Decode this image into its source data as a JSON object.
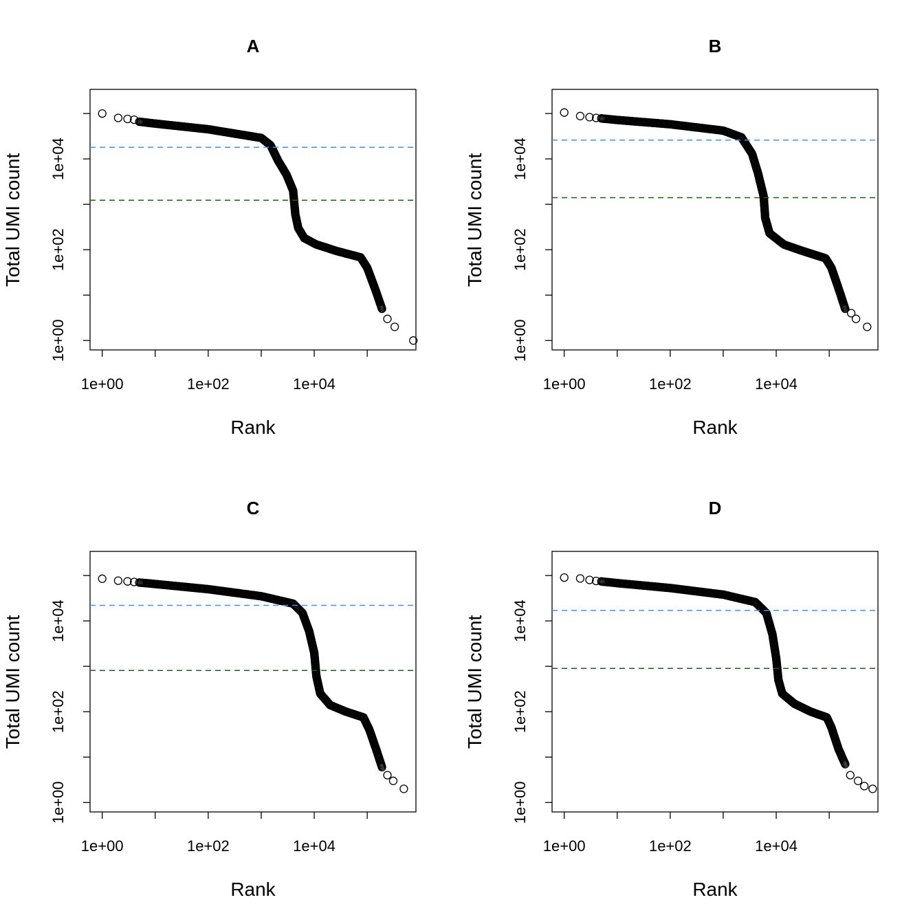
{
  "chart_data": [
    {
      "type": "scatter",
      "title": "A",
      "xlabel": "Rank",
      "ylabel": "Total UMI count",
      "x_scale": "log",
      "y_scale": "log",
      "xlim": [
        0.59,
        830000
      ],
      "ylim": [
        0.62,
        340000
      ],
      "x_tick_labels": [
        "1e+00",
        "1e+02",
        "1e+04"
      ],
      "y_tick_labels": [
        "1e+00",
        "1e+02",
        "1e+04"
      ],
      "grid": false,
      "hlines": [
        {
          "value": 18000,
          "color": "#3f8fff",
          "style": "dashed"
        },
        {
          "value": 1230,
          "color": "#1a5e1a",
          "style": "dashed"
        }
      ],
      "points": [
        [
          1,
          100000
        ],
        [
          2,
          80000
        ],
        [
          3,
          76000
        ],
        [
          4,
          73000
        ],
        [
          5,
          66000
        ],
        [
          10,
          60000
        ],
        [
          100,
          45000
        ],
        [
          1000,
          29000
        ],
        [
          1500,
          20000
        ],
        [
          2100,
          9000
        ],
        [
          3000,
          4500
        ],
        [
          4000,
          2000
        ],
        [
          4400,
          600
        ],
        [
          5000,
          300
        ],
        [
          6500,
          180
        ],
        [
          11000,
          130
        ],
        [
          27000,
          93
        ],
        [
          75000,
          68
        ],
        [
          100000,
          40
        ],
        [
          140000,
          14
        ],
        [
          190000,
          5
        ],
        [
          240000,
          3
        ],
        [
          330000,
          2
        ],
        [
          740000,
          1
        ]
      ]
    },
    {
      "type": "scatter",
      "title": "B",
      "xlabel": "Rank",
      "ylabel": "Total UMI count",
      "x_scale": "log",
      "y_scale": "log",
      "xlim": [
        0.59,
        830000
      ],
      "ylim": [
        0.62,
        340000
      ],
      "x_tick_labels": [
        "1e+00",
        "1e+02",
        "1e+04"
      ],
      "y_tick_labels": [
        "1e+00",
        "1e+02",
        "1e+04"
      ],
      "grid": false,
      "hlines": [
        {
          "value": 26000,
          "color": "#3f8fff",
          "style": "dashed"
        },
        {
          "value": 1400,
          "color": "#1a5e1a",
          "style": "dashed"
        }
      ],
      "points": [
        [
          1,
          105000
        ],
        [
          2,
          88000
        ],
        [
          3,
          83000
        ],
        [
          4,
          80000
        ],
        [
          5,
          78000
        ],
        [
          10,
          72000
        ],
        [
          100,
          58000
        ],
        [
          1000,
          42000
        ],
        [
          2200,
          30000
        ],
        [
          3500,
          13000
        ],
        [
          4500,
          5000
        ],
        [
          5800,
          1500
        ],
        [
          6200,
          500
        ],
        [
          7500,
          230
        ],
        [
          14000,
          130
        ],
        [
          35000,
          90
        ],
        [
          85000,
          65
        ],
        [
          110000,
          40
        ],
        [
          150000,
          14
        ],
        [
          200000,
          5
        ],
        [
          260000,
          4
        ],
        [
          320000,
          3
        ],
        [
          520000,
          2
        ]
      ]
    },
    {
      "type": "scatter",
      "title": "C",
      "xlabel": "Rank",
      "ylabel": "Total UMI count",
      "x_scale": "log",
      "y_scale": "log",
      "xlim": [
        0.59,
        830000
      ],
      "ylim": [
        0.62,
        340000
      ],
      "x_tick_labels": [
        "1e+00",
        "1e+02",
        "1e+04"
      ],
      "y_tick_labels": [
        "1e+00",
        "1e+02",
        "1e+04"
      ],
      "grid": false,
      "hlines": [
        {
          "value": 22000,
          "color": "#3f8fff",
          "style": "dashed"
        },
        {
          "value": 810,
          "color": "#1a5e1a",
          "style": "dashed"
        }
      ],
      "points": [
        [
          1,
          85000
        ],
        [
          2,
          77000
        ],
        [
          3,
          74000
        ],
        [
          4,
          72000
        ],
        [
          5,
          70000
        ],
        [
          10,
          65000
        ],
        [
          100,
          50000
        ],
        [
          1000,
          35000
        ],
        [
          4000,
          24000
        ],
        [
          6000,
          15000
        ],
        [
          8000,
          6000
        ],
        [
          10000,
          2000
        ],
        [
          11000,
          600
        ],
        [
          13000,
          250
        ],
        [
          20000,
          140
        ],
        [
          40000,
          100
        ],
        [
          85000,
          75
        ],
        [
          110000,
          40
        ],
        [
          150000,
          14
        ],
        [
          190000,
          6
        ],
        [
          240000,
          4
        ],
        [
          310000,
          3
        ],
        [
          490000,
          2
        ]
      ]
    },
    {
      "type": "scatter",
      "title": "D",
      "xlabel": "Rank",
      "ylabel": "Total UMI count",
      "x_scale": "log",
      "y_scale": "log",
      "xlim": [
        0.59,
        830000
      ],
      "ylim": [
        0.62,
        340000
      ],
      "x_tick_labels": [
        "1e+00",
        "1e+02",
        "1e+04"
      ],
      "y_tick_labels": [
        "1e+00",
        "1e+02",
        "1e+04"
      ],
      "grid": false,
      "hlines": [
        {
          "value": 17000,
          "color": "#3f8fff",
          "style": "dashed"
        },
        {
          "value": 900,
          "color": "#1a5e1a",
          "style": "dashed"
        }
      ],
      "points": [
        [
          1,
          90000
        ],
        [
          2,
          86000
        ],
        [
          3,
          80000
        ],
        [
          4,
          76000
        ],
        [
          5,
          74000
        ],
        [
          10,
          68000
        ],
        [
          100,
          53000
        ],
        [
          1000,
          38000
        ],
        [
          4000,
          26000
        ],
        [
          6500,
          15000
        ],
        [
          8500,
          5000
        ],
        [
          10000,
          1500
        ],
        [
          11000,
          500
        ],
        [
          13000,
          250
        ],
        [
          22000,
          150
        ],
        [
          45000,
          100
        ],
        [
          90000,
          75
        ],
        [
          110000,
          45
        ],
        [
          150000,
          15
        ],
        [
          200000,
          7
        ],
        [
          250000,
          4
        ],
        [
          350000,
          3
        ],
        [
          460000,
          2.3
        ],
        [
          660000,
          2
        ]
      ]
    }
  ]
}
